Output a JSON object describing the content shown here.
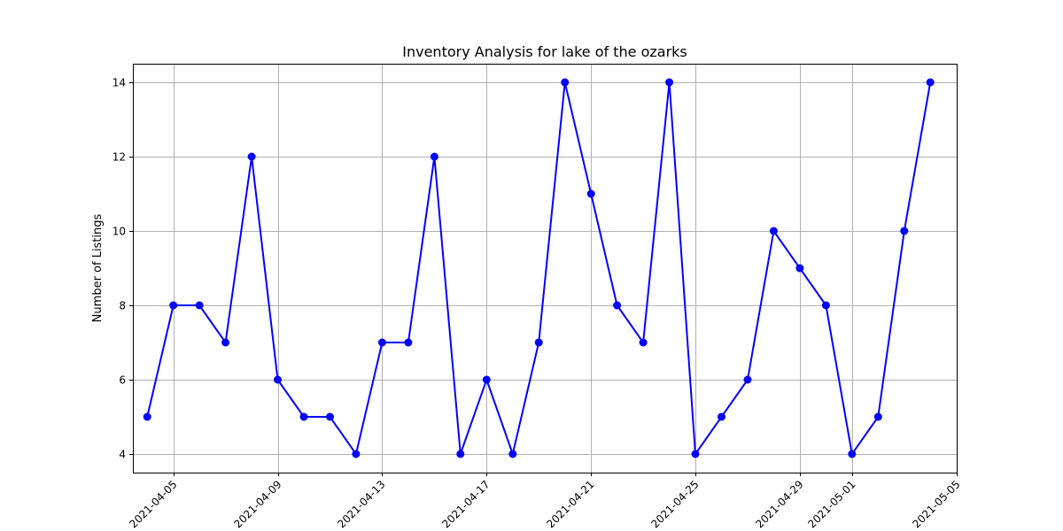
{
  "chart_data": {
    "type": "line",
    "title": "Inventory Analysis for lake of the ozarks",
    "xlabel": "",
    "ylabel": "Number of Listings",
    "x": [
      "2021-04-04",
      "2021-04-05",
      "2021-04-06",
      "2021-04-07",
      "2021-04-08",
      "2021-04-09",
      "2021-04-10",
      "2021-04-11",
      "2021-04-12",
      "2021-04-13",
      "2021-04-14",
      "2021-04-15",
      "2021-04-16",
      "2021-04-17",
      "2021-04-18",
      "2021-04-19",
      "2021-04-20",
      "2021-04-21",
      "2021-04-22",
      "2021-04-23",
      "2021-04-24",
      "2021-04-25",
      "2021-04-26",
      "2021-04-27",
      "2021-04-28",
      "2021-04-29",
      "2021-04-30",
      "2021-05-01",
      "2021-05-02",
      "2021-05-03",
      "2021-05-04"
    ],
    "series": [
      {
        "values": [
          5,
          8,
          8,
          7,
          12,
          6,
          5,
          5,
          4,
          7,
          7,
          12,
          4,
          6,
          4,
          7,
          14,
          11,
          8,
          7,
          14,
          4,
          5,
          6,
          10,
          9,
          8,
          4,
          5,
          10,
          14
        ],
        "color": "#0000ff",
        "marker": "circle"
      }
    ],
    "xticks": [
      "2021-04-05",
      "2021-04-09",
      "2021-04-13",
      "2021-04-17",
      "2021-04-21",
      "2021-04-25",
      "2021-04-29",
      "2021-05-01",
      "2021-05-05"
    ],
    "yticks": [
      4,
      6,
      8,
      10,
      12,
      14
    ],
    "xlim": [
      "2021-04-03",
      "2021-05-05"
    ],
    "ylim": [
      3.5,
      14.5
    ],
    "grid": true,
    "legend": "none"
  }
}
